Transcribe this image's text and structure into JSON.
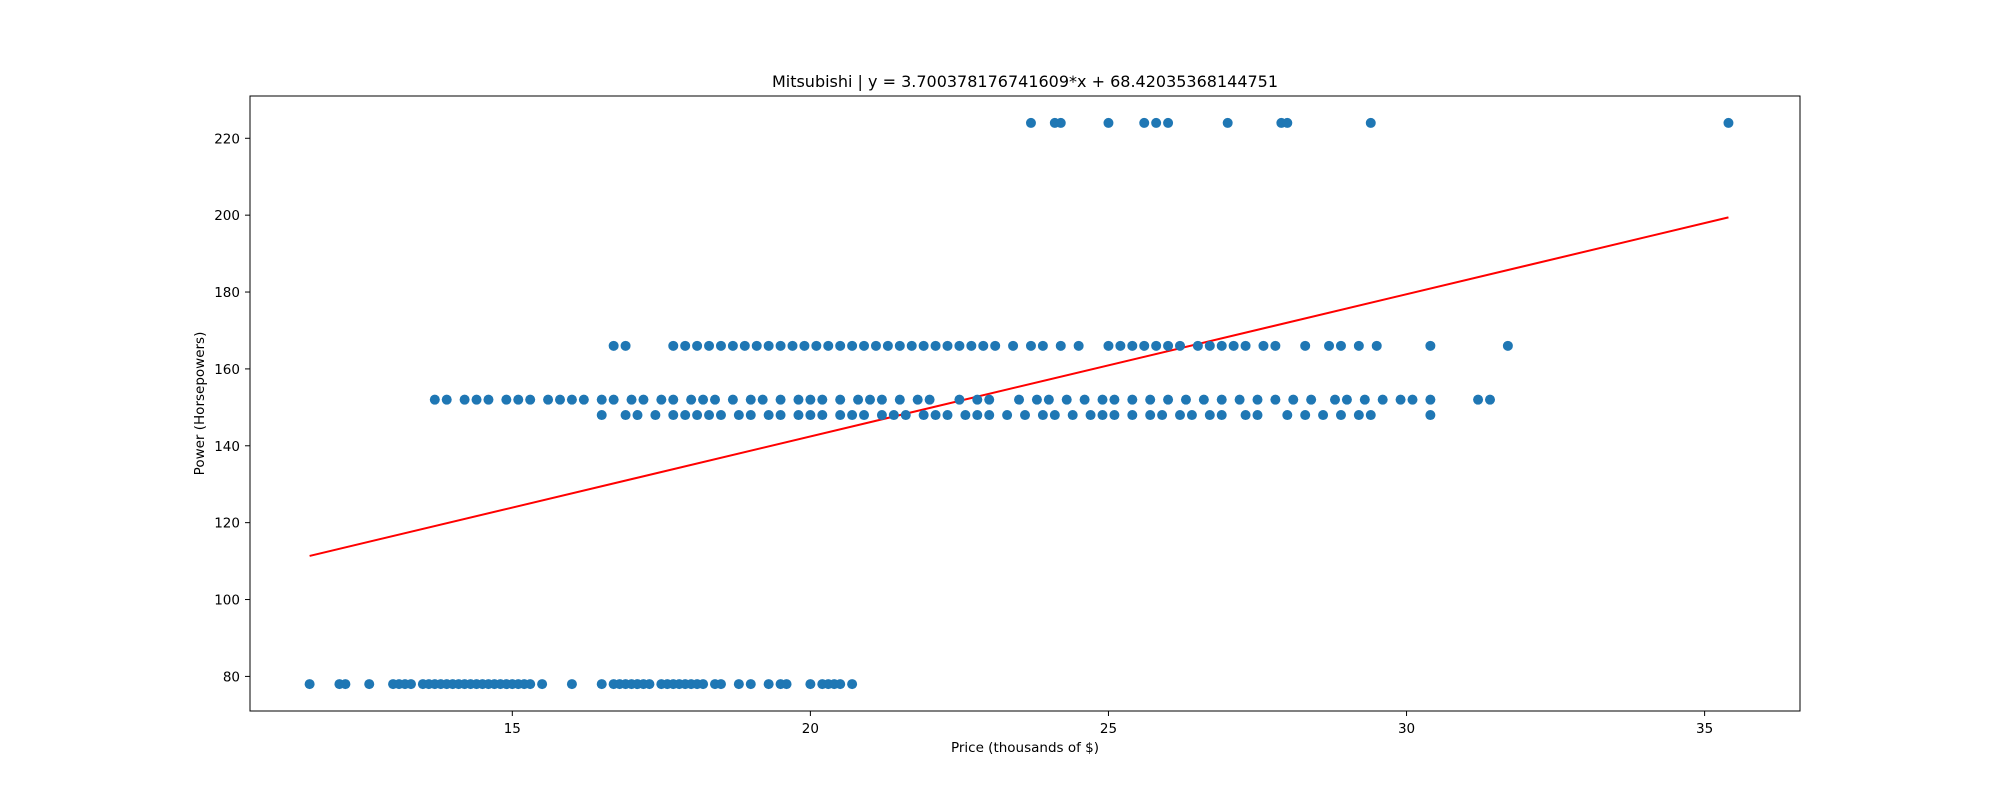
{
  "chart_data": {
    "type": "scatter",
    "title": "Mitsubishi | y = 3.700378176741609*x + 68.42035368144751",
    "xlabel": "Price (thousands of $)",
    "ylabel": "Power (Horsepowers)",
    "xlim": [
      10.6,
      36.6
    ],
    "ylim": [
      71,
      231
    ],
    "xticks": [
      15,
      20,
      25,
      30,
      35
    ],
    "yticks": [
      80,
      100,
      120,
      140,
      160,
      180,
      200,
      220
    ],
    "grid": false,
    "legend": "none",
    "colors": {
      "points": "#1f77b4",
      "fit_line": "#ff0000"
    },
    "fit_line": {
      "slope": 3.700378176741609,
      "intercept": 68.42035368144751,
      "x_range": [
        11.6,
        35.4
      ]
    },
    "series": [
      {
        "kind": "scatter",
        "x": [
          11.6,
          12.1,
          12.2,
          12.6,
          13.0,
          13.1,
          13.2,
          13.3,
          13.5,
          13.6,
          13.7,
          13.8,
          13.9,
          14.0,
          14.1,
          14.2,
          14.3,
          14.4,
          14.5,
          14.6,
          14.7,
          14.8,
          14.9,
          15.0,
          15.1,
          15.2,
          15.3,
          15.5,
          16.0,
          16.5,
          16.7,
          16.8,
          16.9,
          17.0,
          17.1,
          17.2,
          17.3,
          17.5,
          17.6,
          17.7,
          17.8,
          17.9,
          18.0,
          18.1,
          18.2,
          18.4,
          18.5,
          18.8,
          19.0,
          19.3,
          19.5,
          19.6,
          20.0,
          20.2,
          20.3,
          20.4,
          20.5,
          20.7
        ],
        "y": [
          78,
          78,
          78,
          78,
          78,
          78,
          78,
          78,
          78,
          78,
          78,
          78,
          78,
          78,
          78,
          78,
          78,
          78,
          78,
          78,
          78,
          78,
          78,
          78,
          78,
          78,
          78,
          78,
          78,
          78,
          78,
          78,
          78,
          78,
          78,
          78,
          78,
          78,
          78,
          78,
          78,
          78,
          78,
          78,
          78,
          78,
          78,
          78,
          78,
          78,
          78,
          78,
          78,
          78,
          78,
          78,
          78,
          78
        ]
      },
      {
        "kind": "scatter",
        "x": [
          13.7,
          13.9,
          14.2,
          14.4,
          14.6,
          14.9,
          15.1,
          15.3,
          15.6,
          15.8,
          16.0,
          16.2,
          16.5,
          16.7,
          17.0,
          17.2,
          17.5,
          17.7,
          18.0,
          18.2,
          18.4,
          18.7,
          19.0,
          19.2,
          19.5,
          19.8,
          20.0,
          20.2,
          20.5,
          20.8,
          21.0,
          21.2,
          21.5,
          21.8,
          22.0,
          22.5,
          22.8,
          23.0,
          23.5,
          23.8,
          24.0,
          24.3,
          24.6,
          24.9,
          25.1,
          25.4,
          25.7,
          26.0,
          26.3,
          26.6,
          26.9,
          27.2,
          27.5,
          27.8,
          28.1,
          28.4,
          28.8,
          29.0,
          29.3,
          29.6,
          29.9,
          30.1,
          30.4,
          31.2,
          31.4
        ],
        "y": [
          152,
          152,
          152,
          152,
          152,
          152,
          152,
          152,
          152,
          152,
          152,
          152,
          152,
          152,
          152,
          152,
          152,
          152,
          152,
          152,
          152,
          152,
          152,
          152,
          152,
          152,
          152,
          152,
          152,
          152,
          152,
          152,
          152,
          152,
          152,
          152,
          152,
          152,
          152,
          152,
          152,
          152,
          152,
          152,
          152,
          152,
          152,
          152,
          152,
          152,
          152,
          152,
          152,
          152,
          152,
          152,
          152,
          152,
          152,
          152,
          152,
          152,
          152,
          152,
          152
        ]
      },
      {
        "kind": "scatter",
        "x": [
          16.5,
          16.9,
          17.1,
          17.4,
          17.7,
          17.9,
          18.1,
          18.3,
          18.5,
          18.8,
          19.0,
          19.3,
          19.5,
          19.8,
          20.0,
          20.2,
          20.5,
          20.7,
          20.9,
          21.2,
          21.4,
          21.6,
          21.9,
          22.1,
          22.3,
          22.6,
          22.8,
          23.0,
          23.3,
          23.6,
          23.9,
          24.1,
          24.4,
          24.7,
          24.9,
          25.1,
          25.4,
          25.7,
          25.9,
          26.2,
          26.4,
          26.7,
          26.9,
          27.3,
          27.5,
          28.0,
          28.3,
          28.6,
          28.9,
          29.2,
          29.4,
          30.4
        ],
        "y": [
          148,
          148,
          148,
          148,
          148,
          148,
          148,
          148,
          148,
          148,
          148,
          148,
          148,
          148,
          148,
          148,
          148,
          148,
          148,
          148,
          148,
          148,
          148,
          148,
          148,
          148,
          148,
          148,
          148,
          148,
          148,
          148,
          148,
          148,
          148,
          148,
          148,
          148,
          148,
          148,
          148,
          148,
          148,
          148,
          148,
          148,
          148,
          148,
          148,
          148,
          148,
          148
        ]
      },
      {
        "kind": "scatter",
        "x": [
          16.7,
          16.9,
          17.7,
          17.9,
          18.1,
          18.3,
          18.5,
          18.7,
          18.9,
          19.1,
          19.3,
          19.5,
          19.7,
          19.9,
          20.1,
          20.3,
          20.5,
          20.7,
          20.9,
          21.1,
          21.3,
          21.5,
          21.7,
          21.9,
          22.1,
          22.3,
          22.5,
          22.7,
          22.9,
          23.1,
          23.4,
          23.7,
          23.9,
          24.2,
          24.5,
          25.0,
          25.2,
          25.4,
          25.6,
          25.8,
          26.0,
          26.2,
          26.5,
          26.7,
          26.9,
          27.1,
          27.3,
          27.6,
          27.8,
          28.3,
          28.7,
          28.9,
          29.2,
          29.5,
          30.4,
          31.7
        ],
        "y": [
          166,
          166,
          166,
          166,
          166,
          166,
          166,
          166,
          166,
          166,
          166,
          166,
          166,
          166,
          166,
          166,
          166,
          166,
          166,
          166,
          166,
          166,
          166,
          166,
          166,
          166,
          166,
          166,
          166,
          166,
          166,
          166,
          166,
          166,
          166,
          166,
          166,
          166,
          166,
          166,
          166,
          166,
          166,
          166,
          166,
          166,
          166,
          166,
          166,
          166,
          166,
          166,
          166,
          166,
          166,
          166
        ]
      },
      {
        "kind": "scatter",
        "x": [
          23.7,
          24.1,
          24.2,
          25.0,
          25.6,
          25.8,
          26.0,
          27.0,
          27.9,
          28.0,
          29.4,
          35.4
        ],
        "y": [
          224,
          224,
          224,
          224,
          224,
          224,
          224,
          224,
          224,
          224,
          224,
          224
        ]
      }
    ]
  }
}
